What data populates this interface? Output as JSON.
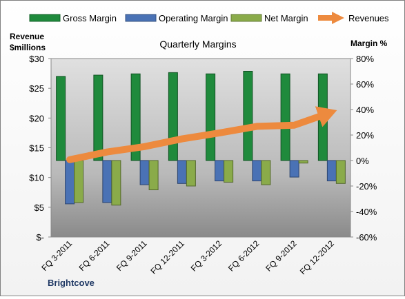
{
  "chart_data": {
    "type": "bar",
    "title": "Quarterly Margins",
    "categories": [
      "FQ 3-2011",
      "FQ 6-2011",
      "FQ 9-2011",
      "FQ 12-2011",
      "FQ 3-2012",
      "FQ 6-2012",
      "FQ 9-2012",
      "FQ 12-2012"
    ],
    "y_left": {
      "label_line1": "Revenue",
      "label_line2": "$millions",
      "range": [
        0,
        30
      ],
      "ticks": [
        "$-",
        "$5",
        "$10",
        "$15",
        "$20",
        "$25",
        "$30"
      ]
    },
    "y_right": {
      "label": "Margin %",
      "range": [
        -60,
        80
      ],
      "ticks": [
        "-60%",
        "-40%",
        "-20%",
        "0%",
        "20%",
        "40%",
        "60%",
        "80%"
      ]
    },
    "series": [
      {
        "name": "Gross Margin",
        "type": "bar",
        "axis": "right",
        "color": "#1f8a3c",
        "values": [
          66,
          67,
          68,
          69,
          68,
          70,
          68,
          68
        ]
      },
      {
        "name": "Operating Margin",
        "type": "bar",
        "axis": "right",
        "color": "#4a72b5",
        "values": [
          -34,
          -33,
          -19,
          -18,
          -16,
          -16,
          -13,
          -16
        ]
      },
      {
        "name": "Net Margin",
        "type": "bar",
        "axis": "right",
        "color": "#8aab4a",
        "values": [
          -33,
          -35,
          -23,
          -20,
          -17,
          -19,
          -2,
          -18
        ]
      },
      {
        "name": "Revenues",
        "type": "line",
        "axis": "left",
        "color": "#ed8a3e",
        "values": [
          13.0,
          14.3,
          15.2,
          16.5,
          17.5,
          18.6,
          18.8,
          21.0
        ]
      }
    ],
    "legend_position": "top",
    "grid": false,
    "footer": "Brightcove"
  }
}
